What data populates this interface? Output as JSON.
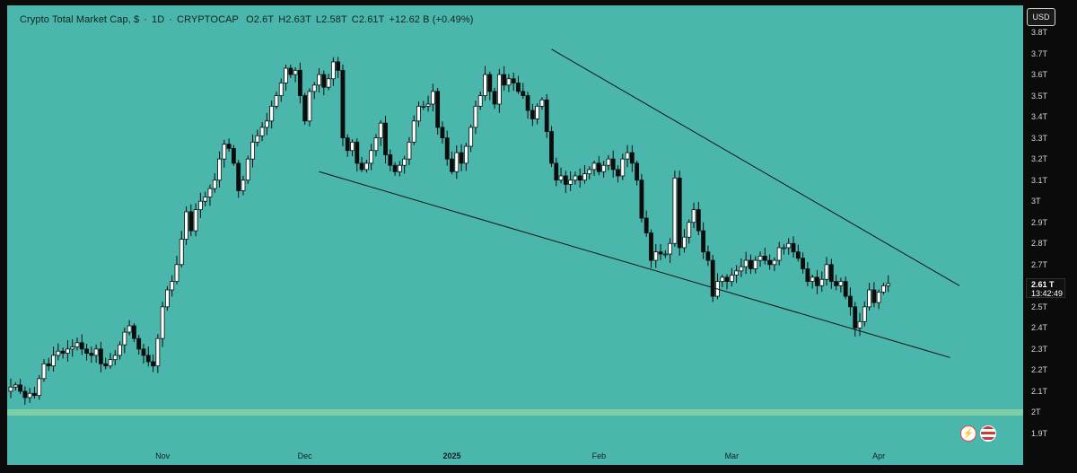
{
  "header": {
    "name": "Crypto Total Market Cap, $",
    "interval": "1D",
    "source": "CRYPTOCAP",
    "open": "O2.6T",
    "high": "H2.63T",
    "low": "L2.58T",
    "close": "C2.61T",
    "change": "+12.62 B (+0.49%)"
  },
  "currency_label": "USD",
  "last_price": {
    "label": "2.61 T",
    "timer": "13:42:49"
  },
  "colors": {
    "background": "#4ab6ac",
    "up_body": "#ffffff",
    "down_body": "#0d0d0d",
    "wick": "#0d0d0d",
    "support_band": "#7fcfa6"
  },
  "icons": [
    "bolt-icon",
    "us-flag-icon"
  ],
  "chart_data": {
    "type": "candlestick",
    "title": "Crypto Total Market Cap, $",
    "ylabel": "",
    "xlabel": "",
    "ylim": [
      1.85,
      3.82
    ],
    "y_ticks": [
      "3.8T",
      "3.7T",
      "3.6T",
      "3.5T",
      "3.4T",
      "3.3T",
      "3.2T",
      "3.1T",
      "3T",
      "2.9T",
      "2.8T",
      "2.7T",
      "2.6T",
      "2.5T",
      "2.4T",
      "2.3T",
      "2.2T",
      "2.1T",
      "2T",
      "1.9T"
    ],
    "y_tick_values": [
      3.8,
      3.7,
      3.6,
      3.5,
      3.4,
      3.3,
      3.2,
      3.1,
      3.0,
      2.9,
      2.8,
      2.7,
      2.6,
      2.5,
      2.4,
      2.3,
      2.2,
      2.1,
      2.0,
      1.9
    ],
    "x_ticks": [
      {
        "label": "Nov",
        "index": 32,
        "bold": false
      },
      {
        "label": "Dec",
        "index": 62,
        "bold": false
      },
      {
        "label": "2025",
        "index": 93,
        "bold": true
      },
      {
        "label": "Feb",
        "index": 124,
        "bold": false
      },
      {
        "label": "Mar",
        "index": 152,
        "bold": false
      },
      {
        "label": "Apr",
        "index": 183,
        "bold": false
      }
    ],
    "closes": [
      2.12,
      2.13,
      2.1,
      2.07,
      2.09,
      2.08,
      2.16,
      2.23,
      2.22,
      2.27,
      2.29,
      2.28,
      2.3,
      2.31,
      2.33,
      2.3,
      2.28,
      2.27,
      2.3,
      2.23,
      2.22,
      2.25,
      2.27,
      2.32,
      2.38,
      2.41,
      2.35,
      2.3,
      2.27,
      2.24,
      2.22,
      2.35,
      2.5,
      2.58,
      2.62,
      2.7,
      2.82,
      2.95,
      2.86,
      2.96,
      3.0,
      3.02,
      3.06,
      3.1,
      3.2,
      3.27,
      3.25,
      3.18,
      3.05,
      3.1,
      3.2,
      3.28,
      3.31,
      3.35,
      3.38,
      3.45,
      3.5,
      3.56,
      3.63,
      3.6,
      3.62,
      3.5,
      3.38,
      3.52,
      3.55,
      3.6,
      3.54,
      3.58,
      3.66,
      3.62,
      3.3,
      3.24,
      3.28,
      3.18,
      3.15,
      3.18,
      3.24,
      3.3,
      3.37,
      3.22,
      3.17,
      3.14,
      3.17,
      3.2,
      3.28,
      3.38,
      3.45,
      3.45,
      3.46,
      3.52,
      3.35,
      3.3,
      3.2,
      3.14,
      3.23,
      3.18,
      3.26,
      3.35,
      3.45,
      3.5,
      3.6,
      3.52,
      3.46,
      3.6,
      3.55,
      3.58,
      3.56,
      3.52,
      3.5,
      3.43,
      3.39,
      3.45,
      3.48,
      3.33,
      3.18,
      3.1,
      3.12,
      3.08,
      3.1,
      3.12,
      3.1,
      3.13,
      3.15,
      3.18,
      3.14,
      3.17,
      3.2,
      3.15,
      3.12,
      3.2,
      3.23,
      3.18,
      3.1,
      2.92,
      2.85,
      2.72,
      2.76,
      2.75,
      2.75,
      2.8,
      3.11,
      2.78,
      2.83,
      2.9,
      2.96,
      2.86,
      2.76,
      2.72,
      2.55,
      2.62,
      2.64,
      2.62,
      2.65,
      2.67,
      2.69,
      2.72,
      2.68,
      2.72,
      2.74,
      2.72,
      2.7,
      2.72,
      2.78,
      2.78,
      2.8,
      2.76,
      2.73,
      2.68,
      2.62,
      2.64,
      2.6,
      2.63,
      2.7,
      2.62,
      2.6,
      2.62,
      2.55,
      2.5,
      2.4,
      2.43,
      2.5,
      2.58,
      2.52,
      2.57,
      2.6,
      2.61
    ],
    "trendlines": [
      {
        "name": "upper",
        "from": {
          "index": 114,
          "value": 3.72
        },
        "to": {
          "index": 200,
          "value": 2.6
        }
      },
      {
        "name": "lower",
        "from": {
          "index": 65,
          "value": 3.14
        },
        "to": {
          "index": 198,
          "value": 2.26
        }
      }
    ],
    "support_band": [
      1.985,
      2.015
    ],
    "grid": false,
    "legend": "none"
  }
}
